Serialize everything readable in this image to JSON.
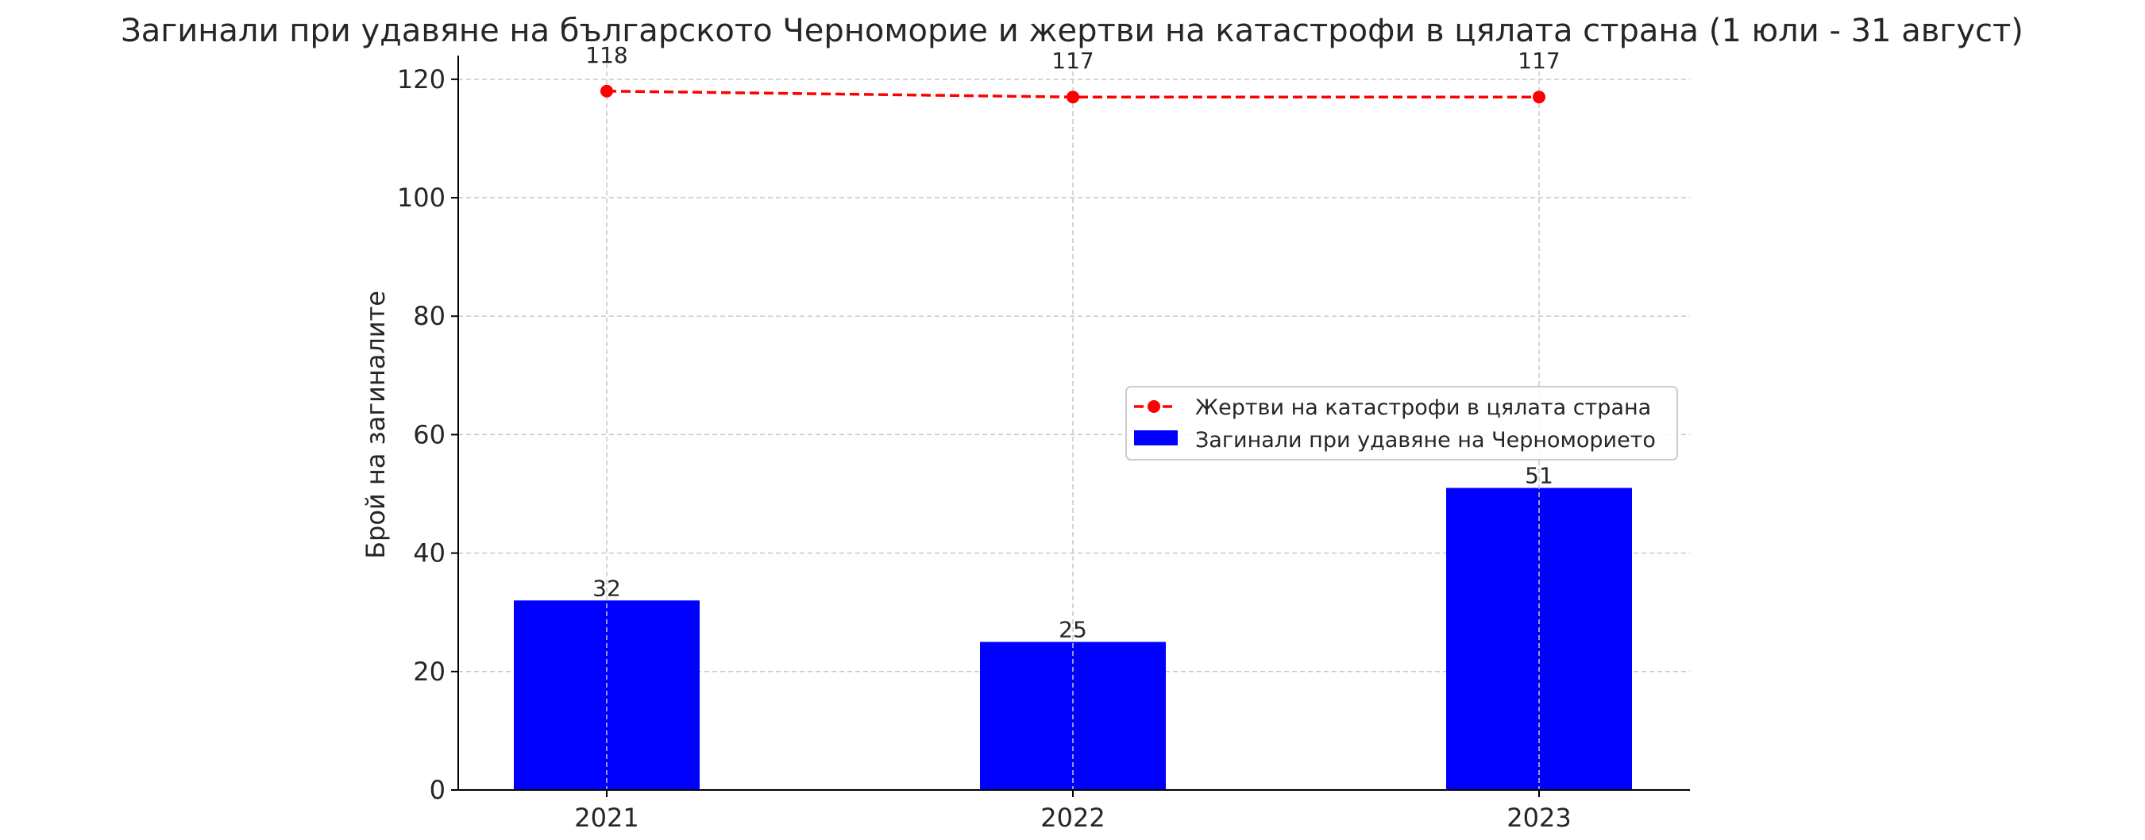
{
  "chart_data": {
    "type": "bar",
    "title": "Загинали при удавяне на българското Черноморие и жертви на катастрофи в цялата страна (1 юли - 31 август)",
    "xlabel": "",
    "ylabel": "Брой на загиналите",
    "categories": [
      "2021",
      "2022",
      "2023"
    ],
    "ylim": [
      0,
      124
    ],
    "yticks": [
      0,
      20,
      40,
      60,
      80,
      100,
      120
    ],
    "grid": true,
    "legend_position": "center-right",
    "series": [
      {
        "name": "Загинали при удавяне на Черноморието",
        "type": "bar",
        "color": "#0000ff",
        "values": [
          32,
          25,
          51
        ],
        "labels": [
          "32",
          "25",
          "51"
        ]
      },
      {
        "name": "Жертви на катастрофи в цялата страна",
        "type": "line",
        "style": "dashed",
        "marker": "circle",
        "color": "#ff0000",
        "values": [
          118,
          117,
          117
        ],
        "labels": [
          "118",
          "117",
          "117"
        ]
      }
    ]
  }
}
